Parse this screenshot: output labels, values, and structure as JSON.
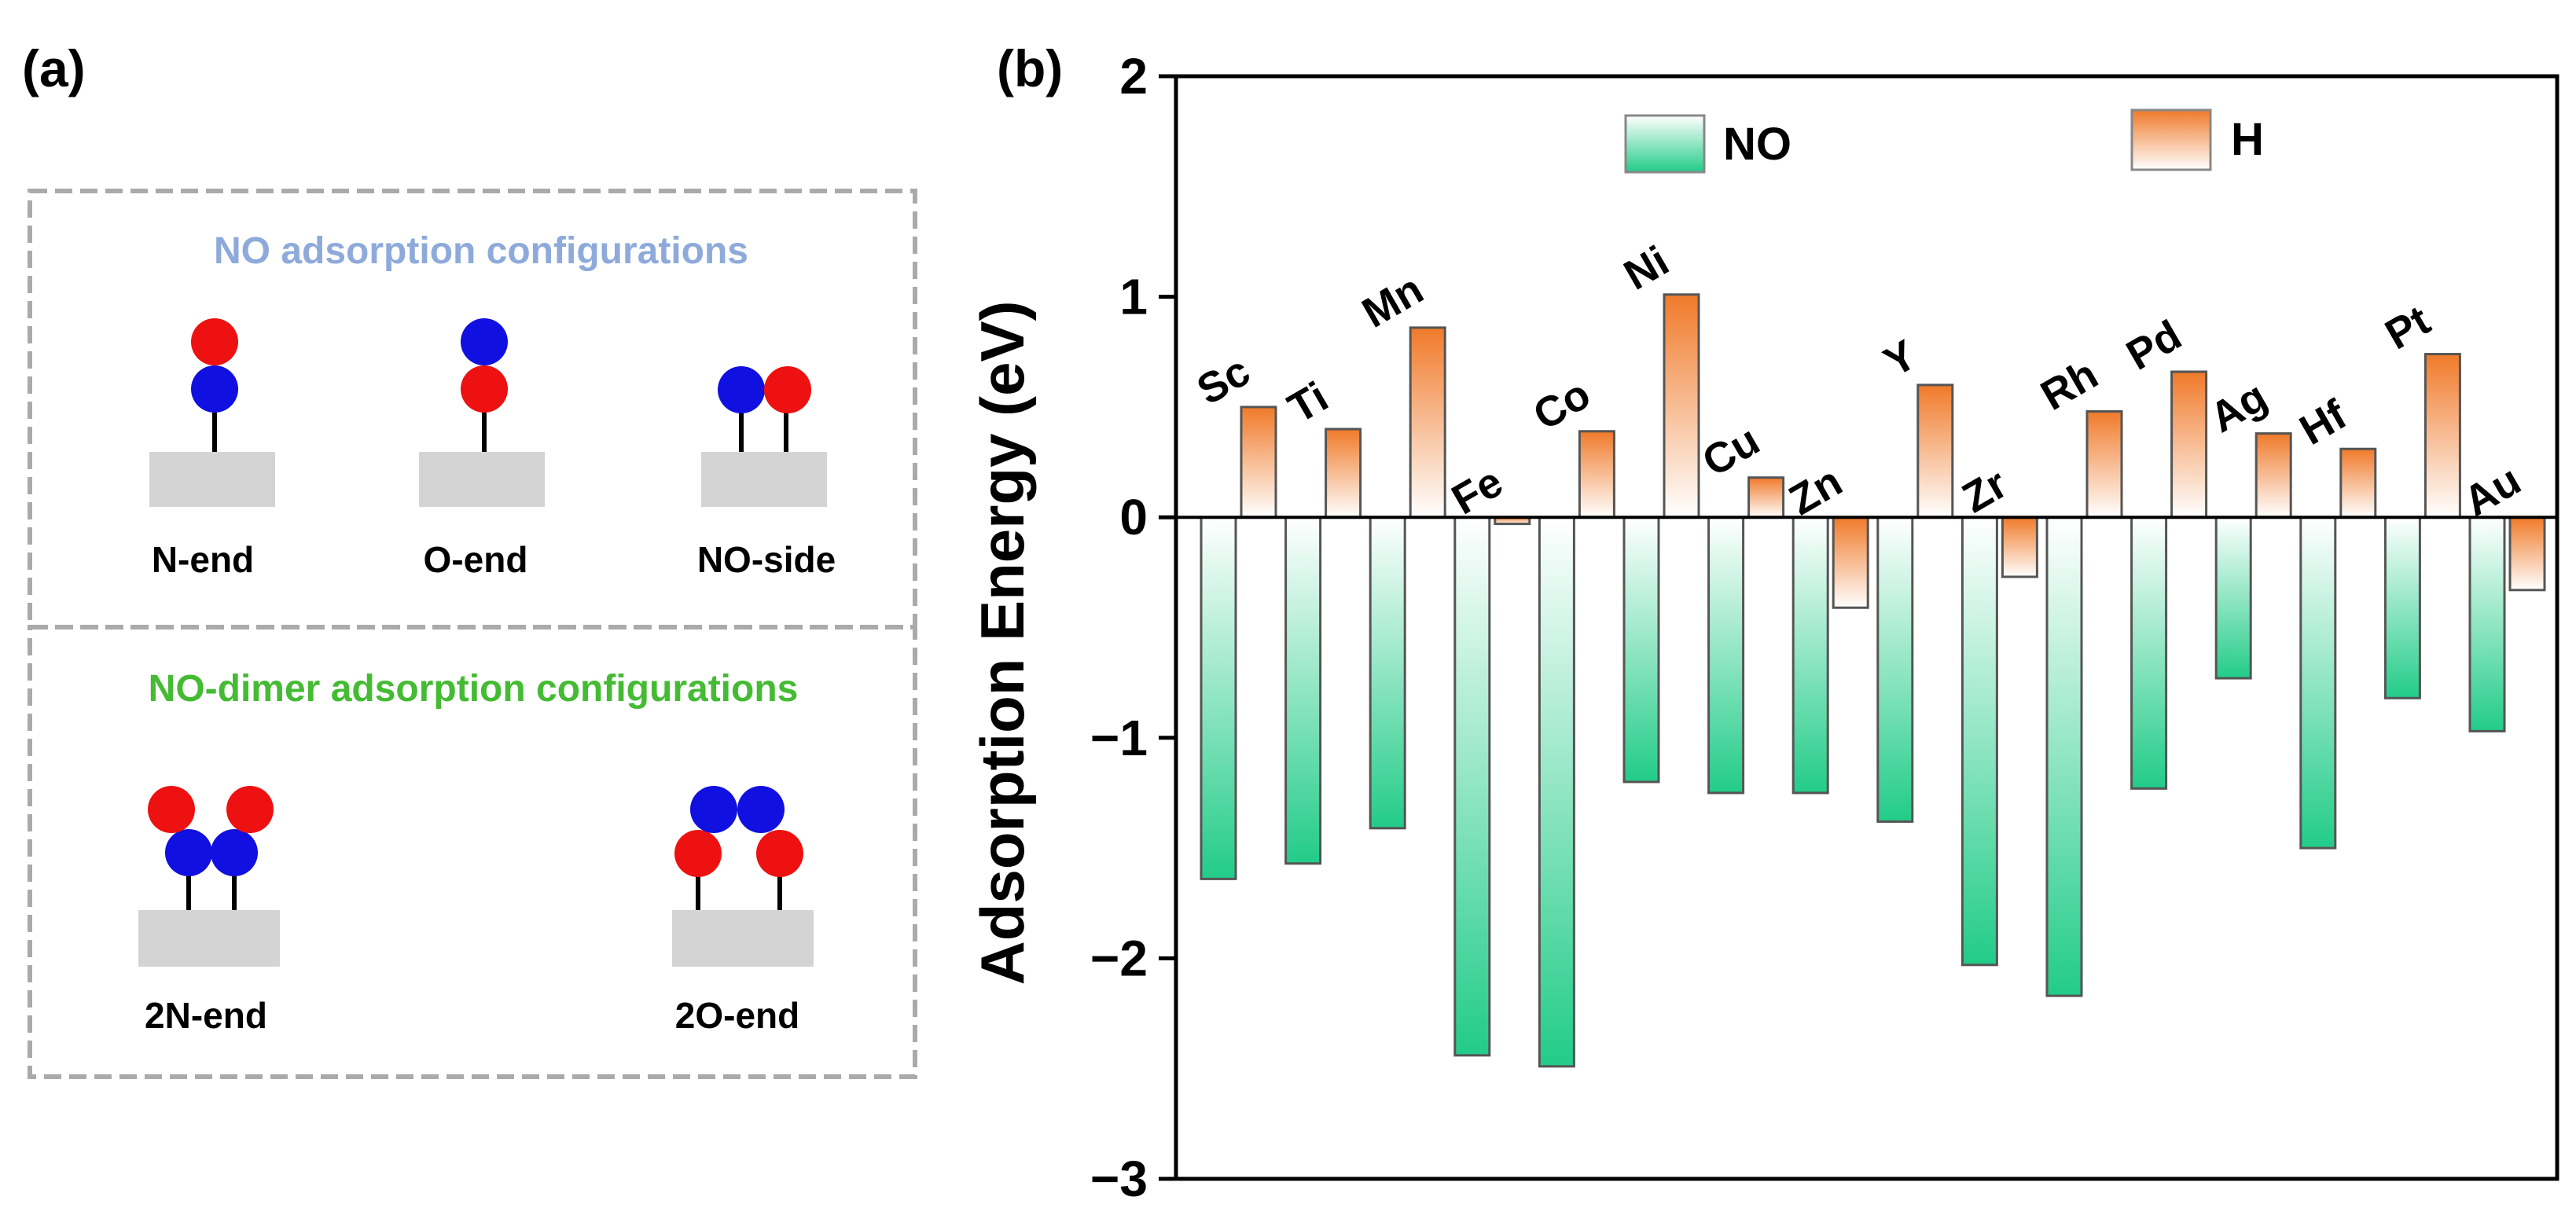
{
  "panel_a": {
    "label": "(a)",
    "no_section_title": "NO adsorption configurations",
    "dimer_section_title": "NO-dimer adsorption configurations",
    "configs": [
      "N-end",
      "O-end",
      "NO-side"
    ],
    "dimer_configs": [
      "2N-end",
      "2O-end"
    ],
    "colors": {
      "nitrogen": "#1010e0",
      "oxygen": "#ee1111",
      "surface": "#d4d4d4",
      "no_title": "#8eaadb",
      "dimer_title": "#44bb33",
      "border": "#aaaaaa"
    }
  },
  "panel_b": {
    "label": "(b)"
  },
  "chart_data": {
    "type": "bar",
    "title": "",
    "xlabel": "",
    "ylabel": "Adsorption Energy (eV)",
    "ylim": [
      -3,
      2
    ],
    "yticks": [
      -3,
      -2,
      -1,
      0,
      1,
      2
    ],
    "ytick_labels": [
      "−3",
      "−2",
      "−1",
      "0",
      "1",
      "2"
    ],
    "grid": false,
    "legend": "top",
    "categories": [
      "Sc",
      "Ti",
      "Mn",
      "Fe",
      "Co",
      "Ni",
      "Cu",
      "Zn",
      "Y",
      "Zr",
      "Rh",
      "Pd",
      "Ag",
      "Hf",
      "Pt",
      "Au"
    ],
    "series": [
      {
        "name": "NO",
        "color": "#22cc88",
        "values": [
          -1.64,
          -1.57,
          -1.41,
          -2.44,
          -2.49,
          -1.2,
          -1.25,
          -1.25,
          -1.38,
          -2.03,
          -2.17,
          -1.23,
          -0.73,
          -1.5,
          -0.82,
          -0.97
        ]
      },
      {
        "name": "H",
        "color": "#f07a2a",
        "values": [
          0.5,
          0.4,
          0.86,
          -0.03,
          0.39,
          1.01,
          0.18,
          -0.41,
          0.6,
          -0.27,
          0.48,
          0.66,
          0.38,
          0.31,
          0.74,
          -0.33
        ]
      }
    ]
  }
}
